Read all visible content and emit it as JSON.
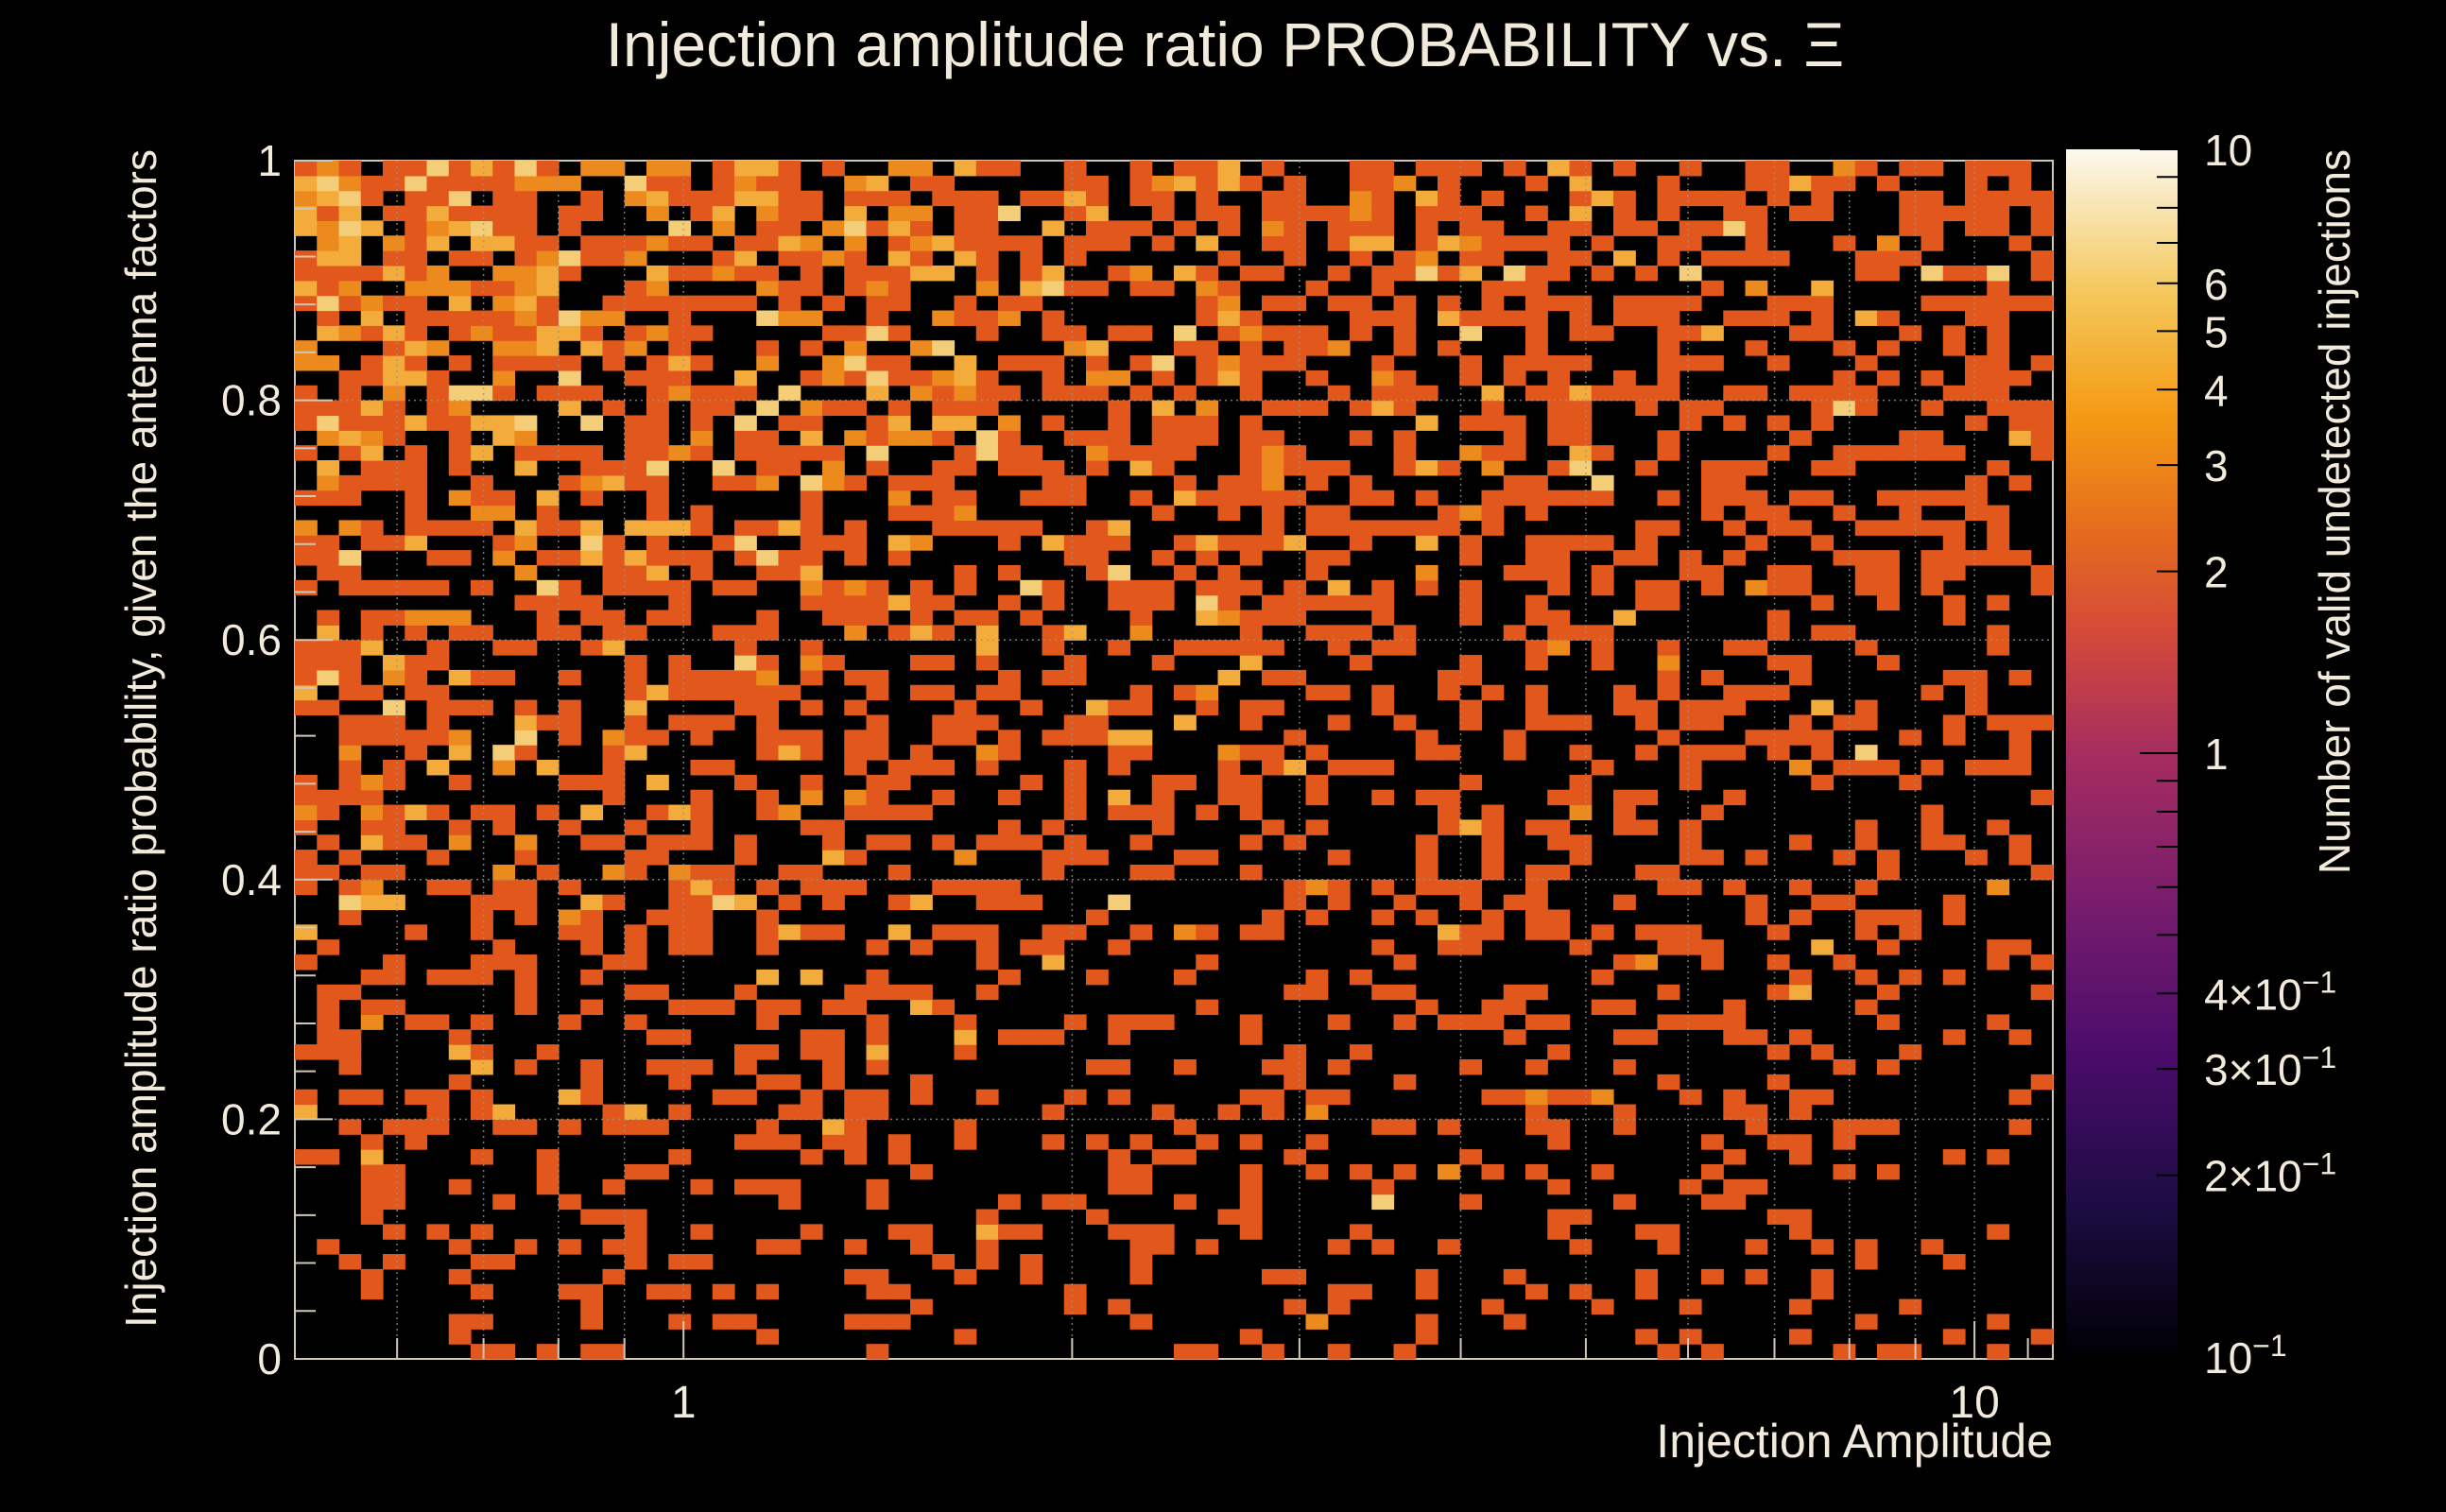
{
  "chart_data": {
    "type": "heatmap",
    "title": "Injection amplitude ratio PROBABILITY vs.",
    "title_symbol": "Ξ",
    "xlabel": "Injection Amplitude",
    "ylabel": "Injection amplitude ratio probability, given the antenna factors",
    "colorbar_label": "Number of valid undetected injections",
    "x_scale": "log",
    "xlim": [
      0.5,
      11.5
    ],
    "ylim": [
      0,
      1
    ],
    "x_tick_labels": [
      {
        "value": 1,
        "label": "1"
      },
      {
        "value": 10,
        "label": "10"
      }
    ],
    "y_tick_labels": [
      {
        "value": 0,
        "label": "0"
      },
      {
        "value": 0.2,
        "label": "0.2"
      },
      {
        "value": 0.4,
        "label": "0.4"
      },
      {
        "value": 0.6,
        "label": "0.6"
      },
      {
        "value": 0.8,
        "label": "0.8"
      },
      {
        "value": 1,
        "label": "1"
      }
    ],
    "z_scale": "log",
    "zlim": [
      0.1,
      10
    ],
    "colorbar_tick_labels": [
      {
        "value": 10,
        "mant": "10",
        "exp": ""
      },
      {
        "value": 6,
        "mant": "6",
        "exp": ""
      },
      {
        "value": 5,
        "mant": "5",
        "exp": ""
      },
      {
        "value": 4,
        "mant": "4",
        "exp": ""
      },
      {
        "value": 3,
        "mant": "3",
        "exp": ""
      },
      {
        "value": 2,
        "mant": "2",
        "exp": ""
      },
      {
        "value": 1,
        "mant": "1",
        "exp": ""
      },
      {
        "value": 0.4,
        "mant": "4×10",
        "exp": "−1"
      },
      {
        "value": 0.3,
        "mant": "3×10",
        "exp": "−1"
      },
      {
        "value": 0.2,
        "mant": "2×10",
        "exp": "−1"
      },
      {
        "value": 0.1,
        "mant": "10",
        "exp": "−1"
      }
    ],
    "grid": true,
    "colormap": [
      "#000004",
      "#1b0c41",
      "#4a0c6b",
      "#781c6d",
      "#a52c60",
      "#cf4446",
      "#ed6925",
      "#fb9b06",
      "#f7d13d",
      "#fcffa4"
    ],
    "bins": {
      "nx": 80,
      "ny": 80
    },
    "cell_counts_note": "Counts are mostly 1, with 2–3 common at low amplitude and high probability; occupancy decreases toward high amplitude and low probability."
  }
}
